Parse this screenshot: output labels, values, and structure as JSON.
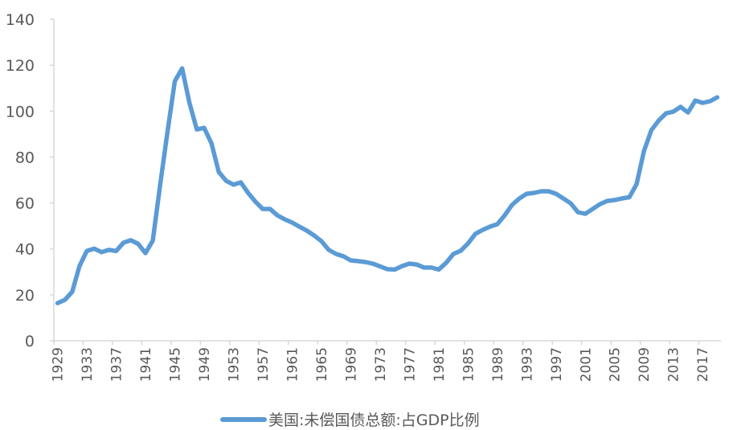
{
  "chart_data": {
    "type": "line",
    "title": "",
    "xlabel": "",
    "ylabel": "",
    "ylim": [
      0,
      140
    ],
    "yticks": [
      0,
      20,
      40,
      60,
      80,
      100,
      120,
      140
    ],
    "x_tick_labels": [
      "1929",
      "1933",
      "1937",
      "1941",
      "1945",
      "1949",
      "1953",
      "1957",
      "1961",
      "1965",
      "1969",
      "1973",
      "1977",
      "1981",
      "1985",
      "1989",
      "1993",
      "1997",
      "2001",
      "2005",
      "2009",
      "2013",
      "2017"
    ],
    "grid": false,
    "legend_position": "bottom",
    "x": [
      1929,
      1930,
      1931,
      1932,
      1933,
      1934,
      1935,
      1936,
      1937,
      1938,
      1939,
      1940,
      1941,
      1942,
      1943,
      1944,
      1945,
      1946,
      1947,
      1948,
      1949,
      1950,
      1951,
      1952,
      1953,
      1954,
      1955,
      1956,
      1957,
      1958,
      1959,
      1960,
      1961,
      1962,
      1963,
      1964,
      1965,
      1966,
      1967,
      1968,
      1969,
      1970,
      1971,
      1972,
      1973,
      1974,
      1975,
      1976,
      1977,
      1978,
      1979,
      1980,
      1981,
      1982,
      1983,
      1984,
      1985,
      1986,
      1987,
      1988,
      1989,
      1990,
      1991,
      1992,
      1993,
      1994,
      1995,
      1996,
      1997,
      1998,
      1999,
      2000,
      2001,
      2002,
      2003,
      2004,
      2005,
      2006,
      2007,
      2008,
      2009,
      2010,
      2011,
      2012,
      2013,
      2014,
      2015,
      2016,
      2017,
      2018,
      2019
    ],
    "series": [
      {
        "name": "美国:未偿国债总额:占GDP比例",
        "color": "#5B9BD5",
        "values": [
          16.4,
          17.8,
          21.3,
          32.5,
          39.1,
          40.1,
          38.6,
          39.6,
          39.1,
          42.7,
          43.8,
          42.2,
          38.2,
          43.6,
          68,
          91,
          113,
          118.6,
          103.6,
          92,
          92.7,
          86,
          73.5,
          69.7,
          68,
          69,
          64.4,
          60.6,
          57.4,
          57.4,
          54.6,
          52.9,
          51.5,
          49.7,
          48,
          45.9,
          43.4,
          39.6,
          37.8,
          36.8,
          35,
          34.7,
          34.3,
          33.6,
          32.4,
          31.2,
          31,
          32.5,
          33.6,
          33.2,
          31.9,
          31.9,
          31,
          33.9,
          37.8,
          39.2,
          42.4,
          46.6,
          48.3,
          49.7,
          50.8,
          54.6,
          59.2,
          62,
          64,
          64.4,
          65.1,
          65.1,
          64,
          62,
          59.9,
          56,
          55.3,
          57.4,
          59.5,
          60.9,
          61.3,
          62,
          62.5,
          68.3,
          82.6,
          91.7,
          95.9,
          99,
          99.8,
          101.9,
          99.4,
          104.6,
          103.6,
          104.3,
          106
        ]
      }
    ]
  },
  "legend": {
    "label": "美国:未偿国债总额:占GDP比例"
  }
}
